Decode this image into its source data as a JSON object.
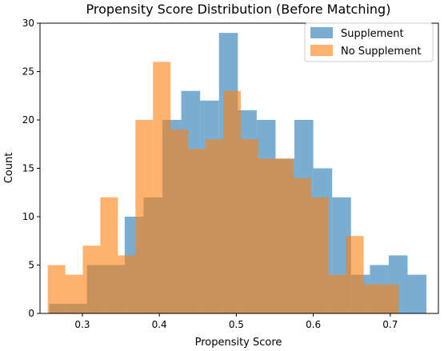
{
  "chart_data": {
    "type": "histogram",
    "title": "Propensity Score Distribution (Before Matching)",
    "xlabel": "Propensity Score",
    "ylabel": "Count",
    "xlim": [
      0.245,
      0.7625
    ],
    "ylim": [
      0,
      30
    ],
    "xticks": [
      "0.3",
      "0.4",
      "0.5",
      "0.6",
      "0.7"
    ],
    "yticks": [
      "0",
      "5",
      "10",
      "15",
      "20",
      "25",
      "30"
    ],
    "grid": false,
    "legend_position": "top-right",
    "series": [
      {
        "name": "Supplement",
        "color": "#1f77b4",
        "alpha": 0.6,
        "bin_start": 0.257,
        "bin_width": 0.0245,
        "counts": [
          1,
          1,
          5,
          5,
          10,
          12,
          20,
          23,
          22,
          29,
          21,
          20,
          16,
          20,
          15,
          12,
          4,
          5,
          6,
          4
        ]
      },
      {
        "name": "No Supplement",
        "color": "#ff7f0e",
        "alpha": 0.6,
        "bin_start": 0.255,
        "bin_width": 0.0228,
        "counts": [
          5,
          4,
          7,
          12,
          6,
          20,
          26,
          19,
          17,
          18,
          23,
          18,
          16,
          16,
          14,
          12,
          4,
          8,
          3,
          3
        ]
      }
    ]
  }
}
